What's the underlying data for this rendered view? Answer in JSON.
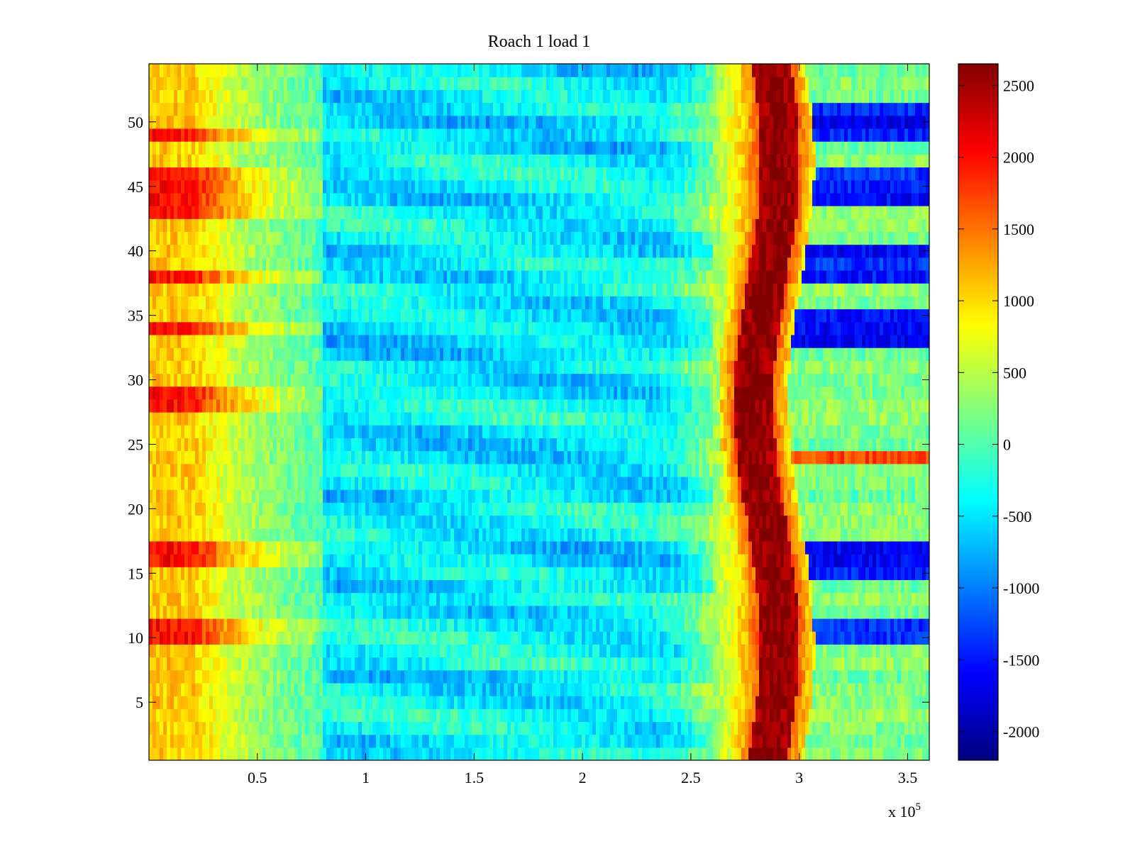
{
  "chart_data": {
    "type": "heatmap",
    "title": "Roach 1 load 1",
    "xlabel": "",
    "ylabel": "",
    "x_multiplier_label": {
      "base": "x 10",
      "exponent": "5"
    },
    "xlim": [
      0,
      360000
    ],
    "ylim": [
      0.5,
      54.5
    ],
    "x_ticks": [
      50000,
      100000,
      150000,
      200000,
      250000,
      300000,
      350000
    ],
    "x_tick_labels": [
      "0.5",
      "1",
      "1.5",
      "2",
      "2.5",
      "3",
      "3.5"
    ],
    "y_ticks": [
      5,
      10,
      15,
      20,
      25,
      30,
      35,
      40,
      45,
      50
    ],
    "y_tick_labels": [
      "5",
      "10",
      "15",
      "20",
      "25",
      "30",
      "35",
      "40",
      "45",
      "50"
    ],
    "rows": 54,
    "colormap": "jet",
    "clim": [
      -2200,
      2650
    ],
    "colorbar_ticks": [
      2500,
      2000,
      1500,
      1000,
      500,
      0,
      -500,
      -1000,
      -1500,
      -2000
    ],
    "colorbar_tick_labels": [
      "2500",
      "2000",
      "1500",
      "1000",
      "500",
      "0",
      "-500",
      "-1000",
      "-1500",
      "-2000"
    ],
    "grid": false,
    "description_features": {
      "ridge_center_x": 285000,
      "ridge_peak_value": 2650,
      "left_band_value_range": [
        300,
        2300
      ],
      "middle_band_value_range": [
        -1000,
        200
      ],
      "right_band_low_rows": [
        10,
        11,
        15,
        16,
        17,
        33,
        34,
        35,
        38,
        39,
        40,
        44,
        45,
        46,
        49,
        50,
        51
      ]
    }
  }
}
